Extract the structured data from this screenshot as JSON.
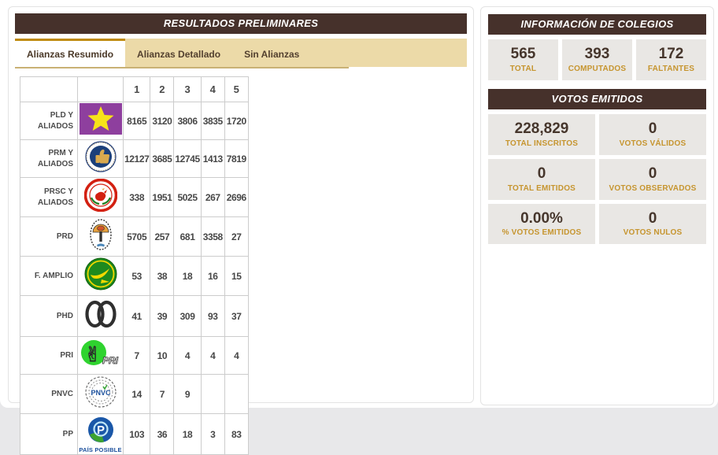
{
  "left_panel": {
    "title": "RESULTADOS PRELIMINARES",
    "tabs": [
      {
        "label": "Alianzas Resumido",
        "active": true
      },
      {
        "label": "Alianzas Detallado",
        "active": false
      },
      {
        "label": "Sin Alianzas",
        "active": false
      }
    ],
    "table": {
      "column_headers": [
        "1",
        "2",
        "3",
        "4",
        "5"
      ],
      "rows": [
        {
          "party": "PLD Y ALIADOS",
          "logo": "pld-star-logo",
          "values": [
            "8165",
            "3120",
            "3806",
            "3835",
            "1720"
          ]
        },
        {
          "party": "PRM Y ALIADOS",
          "logo": "prm-thumb-logo",
          "values": [
            "12127",
            "3685",
            "12745",
            "1413",
            "7819"
          ]
        },
        {
          "party": "PRSC Y ALIADOS",
          "logo": "prsc-rooster-logo",
          "values": [
            "338",
            "1951",
            "5025",
            "267",
            "2696"
          ]
        },
        {
          "party": "PRD",
          "logo": "prd-emblem-logo",
          "values": [
            "5705",
            "257",
            "681",
            "3358",
            "27"
          ]
        },
        {
          "party": "F. AMPLIO",
          "logo": "frente-amplio-logo",
          "values": [
            "53",
            "38",
            "18",
            "16",
            "15"
          ]
        },
        {
          "party": "PHD",
          "logo": "phd-rings-logo",
          "values": [
            "41",
            "39",
            "309",
            "93",
            "37"
          ]
        },
        {
          "party": "PRI",
          "logo": "pri-hand-logo",
          "values": [
            "7",
            "10",
            "4",
            "4",
            "4"
          ]
        },
        {
          "party": "PNVC",
          "logo": "pnvc-seal-logo",
          "values": [
            "14",
            "7",
            "9",
            "",
            ""
          ]
        },
        {
          "party": "PP",
          "logo": "pais-posible-logo",
          "caption": "PAÍS POSIBLE",
          "values": [
            "103",
            "36",
            "18",
            "3",
            "83"
          ]
        }
      ]
    }
  },
  "right_panel": {
    "colegios": {
      "title": "INFORMACIÓN DE COLEGIOS",
      "stats": [
        {
          "value": "565",
          "label": "TOTAL"
        },
        {
          "value": "393",
          "label": "COMPUTADOS"
        },
        {
          "value": "172",
          "label": "FALTANTES"
        }
      ]
    },
    "votos": {
      "title": "VOTOS EMITIDOS",
      "stats": [
        {
          "value": "228,829",
          "label": "TOTAL INSCRITOS"
        },
        {
          "value": "0",
          "label": "VOTOS VÁLIDOS"
        },
        {
          "value": "0",
          "label": "TOTAL EMITIDOS"
        },
        {
          "value": "0",
          "label": "VOTOS OBSERVADOS"
        },
        {
          "value": "0.00%",
          "label": "% VOTOS EMITIDOS"
        },
        {
          "value": "0",
          "label": "VOTOS NULOS"
        }
      ]
    }
  },
  "colors": {
    "header_brown": "#46312b",
    "tab_tan": "#ecdaa8",
    "active_tab_accent": "#bf8a0d",
    "gold_label": "#c6952f",
    "stat_box_bg": "#e9e7e4",
    "pld_purple": "#8e3f9e",
    "pld_star_yellow": "#f7e319"
  }
}
